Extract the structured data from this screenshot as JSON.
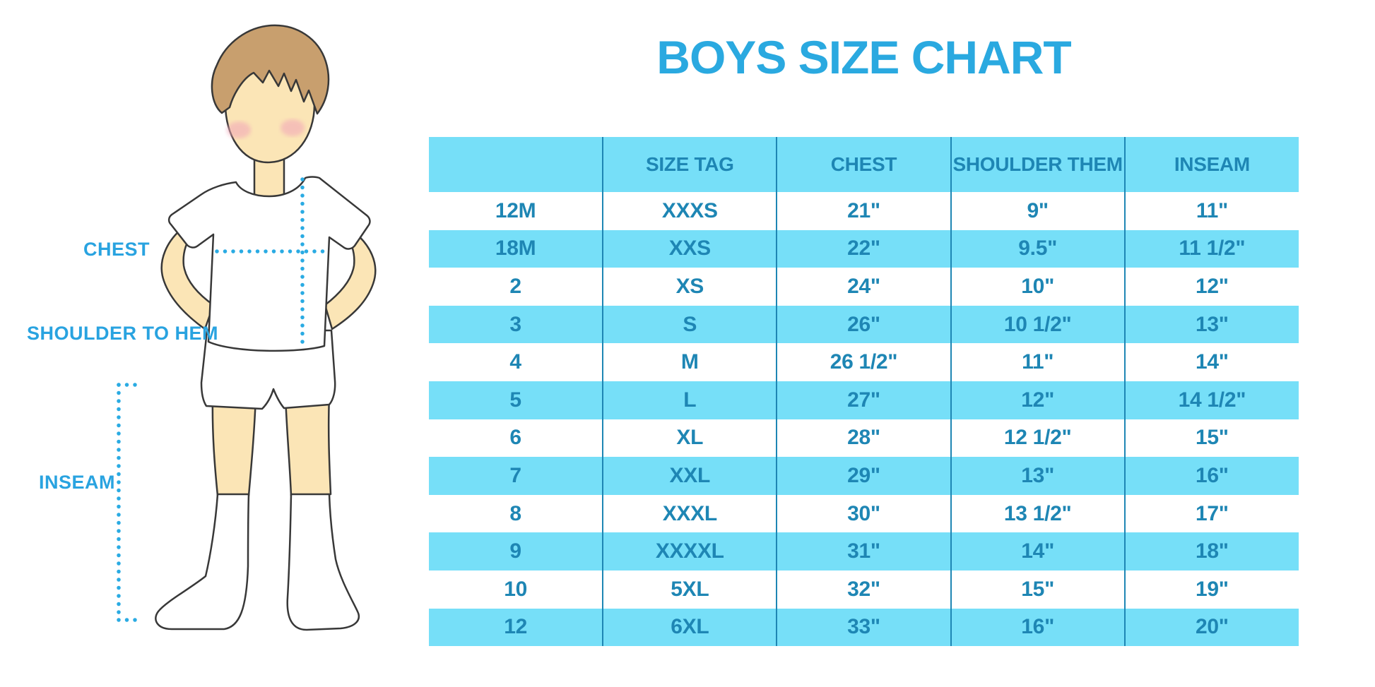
{
  "title": "BOYS SIZE CHART",
  "figure": {
    "labels": {
      "chest": "CHEST",
      "shoulder_to_hem": "SHOULDER TO HEM",
      "inseam": "INSEAM"
    }
  },
  "chart_data": {
    "type": "table",
    "title": "BOYS SIZE CHART",
    "headers": [
      "",
      "SIZE TAG",
      "CHEST",
      "SHOULDER THEM",
      "INSEAM"
    ],
    "rows": [
      [
        "12M",
        "XXXS",
        "21\"",
        "9\"",
        "11\""
      ],
      [
        "18M",
        "XXS",
        "22\"",
        "9.5\"",
        "11 1/2\""
      ],
      [
        "2",
        "XS",
        "24\"",
        "10\"",
        "12\""
      ],
      [
        "3",
        "S",
        "26\"",
        "10 1/2\"",
        "13\""
      ],
      [
        "4",
        "M",
        "26 1/2\"",
        "11\"",
        "14\""
      ],
      [
        "5",
        "L",
        "27\"",
        "12\"",
        "14 1/2\""
      ],
      [
        "6",
        "XL",
        "28\"",
        "12 1/2\"",
        "15\""
      ],
      [
        "7",
        "XXL",
        "29\"",
        "13\"",
        "16\""
      ],
      [
        "8",
        "XXXL",
        "30\"",
        "13 1/2\"",
        "17\""
      ],
      [
        "9",
        "XXXXL",
        "31\"",
        "14\"",
        "18\""
      ],
      [
        "10",
        "5XL",
        "32\"",
        "15\"",
        "19\""
      ],
      [
        "12",
        "6XL",
        "33\"",
        "16\"",
        "20\""
      ]
    ],
    "banding": "header and odd data rows light blue, others white",
    "legend_position": "none",
    "grid": "vertical column separators only"
  },
  "colors": {
    "band_blue": "#76dff8",
    "table_text_blue": "#1e86b4",
    "accent_blue": "#2aa9e0",
    "dotted_line_blue": "#2aabe3",
    "skin": "#fbe5b6",
    "hair_brown": "#c89f6e",
    "blush_pink": "#f2a9b8",
    "outline": "#383838",
    "background": "#ffffff"
  }
}
